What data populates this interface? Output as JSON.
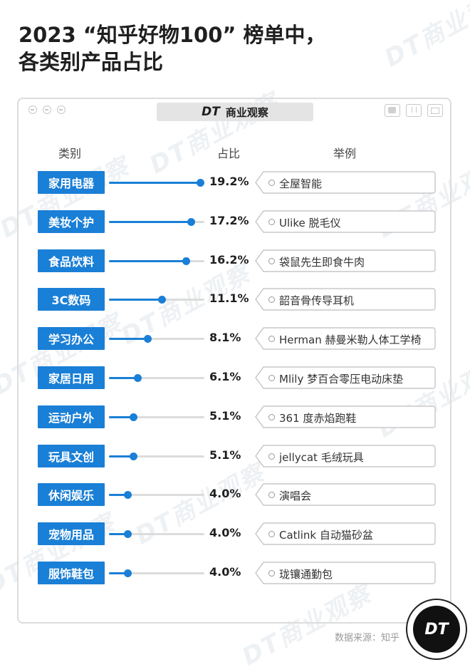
{
  "title": {
    "line1": "2023 “知乎好物100” 榜单中，",
    "line2": "各类别产品占比"
  },
  "brand": {
    "dt": "DT",
    "name": "商业观察",
    "watermark": "DT商业观察",
    "logo_text": "DT"
  },
  "headers": {
    "category": "类别",
    "share": "占比",
    "example": "举例"
  },
  "colors": {
    "accent": "#1a7fd6",
    "track": "#dcdcdc"
  },
  "chart_data": {
    "type": "bar",
    "title": "2023 “知乎好物100” 榜单中，各类别产品占比",
    "ylim": [
      0,
      20
    ],
    "categories": [
      "家用电器",
      "美妆个护",
      "食品饮料",
      "3C数码",
      "学习办公",
      "家居日用",
      "运动户外",
      "玩具文创",
      "休闲娱乐",
      "宠物用品",
      "服饰鞋包"
    ],
    "values": [
      19.2,
      17.2,
      16.2,
      11.1,
      8.1,
      6.1,
      5.1,
      5.1,
      4.0,
      4.0,
      4.0
    ],
    "value_labels": [
      "19.2%",
      "17.2%",
      "16.2%",
      "11.1%",
      "8.1%",
      "6.1%",
      "5.1%",
      "5.1%",
      "4.0%",
      "4.0%",
      "4.0%"
    ],
    "examples": [
      "全屋智能",
      "Ulike 脱毛仪",
      "袋鼠先生即食牛肉",
      "韶音骨传导耳机",
      "Herman 赫曼米勒人体工学椅",
      "Mlily 梦百合零压电动床垫",
      "361 度赤焰跑鞋",
      "jellycat 毛绒玩具",
      "演唱会",
      "Catlink 自动猫砂盆",
      "珑镶通勤包"
    ]
  },
  "source": "数据来源：知乎"
}
